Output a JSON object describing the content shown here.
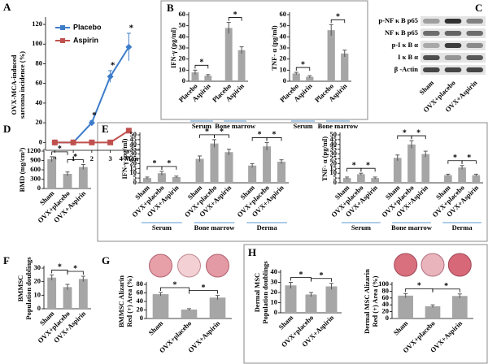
{
  "chart_data": [
    {
      "type": "line",
      "panel": "A",
      "ylabel": [
        "OVX-MCA-induced",
        "sarcoma incidence (%)"
      ],
      "x": [
        0,
        1,
        2,
        3,
        4
      ],
      "xlim": [
        -0.5,
        4.6
      ],
      "xticks": [
        0,
        1,
        2,
        3,
        {
          "value": 4,
          "label": "4 Mon"
        }
      ],
      "ylim": [
        -8,
        125
      ],
      "yticks": [
        0,
        20,
        40,
        60,
        80,
        100,
        120
      ],
      "series": [
        {
          "name": "Placebo",
          "color": "#3d7cc9",
          "marker": "diamond",
          "values": [
            0,
            0,
            20,
            67,
            97
          ],
          "errors": [
            0,
            0,
            2,
            6,
            14
          ]
        },
        {
          "name": "Aspirin",
          "color": "#c0504d",
          "marker": "square",
          "values": [
            0,
            0,
            0,
            0,
            12
          ],
          "errors": [
            0,
            0,
            0,
            0,
            1
          ]
        }
      ],
      "annotations": [
        {
          "x": 2,
          "label": "*"
        },
        {
          "x": 3,
          "label": "*"
        },
        {
          "x": 4,
          "label": "*"
        }
      ]
    },
    {
      "type": "bar",
      "panel": "B",
      "ylabel": [
        "IFN-γ (pg/ml)"
      ],
      "color": "#a6a6a6",
      "ylim": [
        0,
        60
      ],
      "yticks": [
        0,
        10,
        20,
        30,
        40,
        50,
        60
      ],
      "groups": [
        {
          "name": "Serum",
          "categories": [
            "Placebo",
            "Aspirin"
          ],
          "values": [
            8,
            5
          ],
          "errors": [
            2,
            1
          ]
        },
        {
          "name": "Bone marrow",
          "categories": [
            "Placebo",
            "Aspirin"
          ],
          "values": [
            48,
            28
          ],
          "errors": [
            5,
            3
          ]
        }
      ],
      "significance": [
        {
          "from": 0,
          "to": 1,
          "label": "*"
        },
        {
          "from": 2,
          "to": 3,
          "label": "*"
        }
      ]
    },
    {
      "type": "bar",
      "ylabel": [
        "TNF- α (pg/ml)"
      ],
      "color": "#a6a6a6",
      "ylim": [
        0,
        60
      ],
      "yticks": [
        0,
        10,
        20,
        30,
        40,
        50,
        60
      ],
      "groups": [
        {
          "name": "Serum",
          "categories": [
            "Placebo",
            "Aspirin"
          ],
          "values": [
            7,
            4
          ],
          "errors": [
            1,
            1
          ]
        },
        {
          "name": "Bone marrow",
          "categories": [
            "Placebo",
            "Aspirin"
          ],
          "values": [
            46,
            25
          ],
          "errors": [
            5,
            3
          ]
        }
      ],
      "significance": [
        {
          "from": 0,
          "to": 1,
          "label": "*"
        },
        {
          "from": 2,
          "to": 3,
          "label": "*"
        }
      ]
    },
    {
      "type": "blot",
      "panel": "C",
      "rows": [
        "p-NF κ B p65",
        "NF κ B p65",
        "p-I κ B α",
        "I κ B α",
        "β -Actin"
      ],
      "lanes": [
        "Sham",
        "OVX+placebo",
        "OVX+Aspirin"
      ]
    },
    {
      "type": "bar",
      "panel": "D",
      "ylabel": [
        "BMD  (mg/cm³)"
      ],
      "color": "#a6a6a6",
      "ylim": [
        0,
        1200
      ],
      "yticks": [
        0,
        300,
        600,
        900,
        1200
      ],
      "categories": [
        "Sham",
        "OVX+placebo",
        "OVX+Aspirin"
      ],
      "values": [
        940,
        470,
        690
      ],
      "errors": [
        80,
        60,
        80
      ],
      "significance": [
        {
          "from": 0,
          "to": 1,
          "label": "*"
        },
        {
          "from": 1,
          "to": 2,
          "label": "*"
        }
      ]
    },
    {
      "type": "bar",
      "panel": "E",
      "ylabel": [
        "IFN-γ (pg/ml)"
      ],
      "color": "#a6a6a6",
      "ylim": [
        0,
        50
      ],
      "yticks": [
        0,
        5,
        10,
        15,
        20,
        25,
        30,
        35,
        40,
        45,
        50
      ],
      "groups": [
        {
          "name": "Serum",
          "categories": [
            "Sham",
            "OVX+placebo",
            "OVX+Aspirin"
          ],
          "values": [
            5,
            10,
            6
          ],
          "errors": [
            1,
            2,
            1
          ]
        },
        {
          "name": "Bone marrow",
          "categories": [
            "Sham",
            "OVX+placebo",
            "OVX+Aspirin"
          ],
          "values": [
            25,
            41,
            32
          ],
          "errors": [
            3,
            4,
            3
          ]
        },
        {
          "name": "Derma",
          "categories": [
            "Sham",
            "OVX+placebo",
            "OVX+Aspirin"
          ],
          "values": [
            18,
            38,
            22
          ],
          "errors": [
            2,
            4,
            2
          ]
        }
      ],
      "significance": [
        {
          "from": 0,
          "to": 1,
          "label": "*"
        },
        {
          "from": 1,
          "to": 2,
          "label": "*"
        },
        {
          "from": 3,
          "to": 4,
          "label": "*"
        },
        {
          "from": 4,
          "to": 5,
          "label": "*"
        },
        {
          "from": 6,
          "to": 7,
          "label": "*"
        },
        {
          "from": 7,
          "to": 8,
          "label": "*"
        }
      ]
    },
    {
      "type": "bar",
      "ylabel": [
        "TNF- α (pg/ml)"
      ],
      "color": "#a6a6a6",
      "ylim": [
        0,
        50
      ],
      "yticks": [
        0,
        5,
        10,
        15,
        20,
        25,
        30,
        35,
        40,
        45,
        50
      ],
      "groups": [
        {
          "name": "Serum",
          "categories": [
            "Sham",
            "OVX+placebo",
            "OVX+Aspirin"
          ],
          "values": [
            5,
            9,
            5
          ],
          "errors": [
            1,
            1,
            1
          ]
        },
        {
          "name": "Bone marrow",
          "categories": [
            "Sham",
            "OVX+placebo",
            "OVX+Aspirin"
          ],
          "values": [
            26,
            40,
            30
          ],
          "errors": [
            3,
            4,
            3
          ]
        },
        {
          "name": "Derma",
          "categories": [
            "Sham",
            "OVX+placebo",
            "OVX+Aspirin"
          ],
          "values": [
            8,
            16,
            8
          ],
          "errors": [
            1,
            2,
            1
          ]
        }
      ],
      "significance": [
        {
          "from": 0,
          "to": 1,
          "label": "*"
        },
        {
          "from": 1,
          "to": 2,
          "label": "*"
        },
        {
          "from": 3,
          "to": 4,
          "label": "*"
        },
        {
          "from": 4,
          "to": 5,
          "label": "*"
        },
        {
          "from": 6,
          "to": 7,
          "label": "*"
        },
        {
          "from": 7,
          "to": 8,
          "label": "*"
        }
      ]
    },
    {
      "type": "bar",
      "panel": "F",
      "ylabel": [
        "BMMSC",
        "Population doublings"
      ],
      "color": "#a6a6a6",
      "ylim": [
        0,
        30
      ],
      "yticks": [
        0,
        10,
        20,
        30
      ],
      "categories": [
        "Sham",
        "OVX+placebo",
        "OVX+Aspirin"
      ],
      "values": [
        23,
        16,
        22
      ],
      "errors": [
        2,
        2,
        2
      ],
      "significance": [
        {
          "from": 0,
          "to": 1,
          "label": "*"
        },
        {
          "from": 1,
          "to": 2,
          "label": "*"
        }
      ]
    },
    {
      "type": "bar",
      "panel": "G",
      "ylabel": [
        "BMMSC Alizarin",
        "Red (+) Area (%)"
      ],
      "color": "#a6a6a6",
      "ylim": [
        0,
        80
      ],
      "yticks": [
        0,
        20,
        40,
        60,
        80
      ],
      "categories": [
        "Sham",
        "OVX+placebo",
        "OVX+Aspirin"
      ],
      "values": [
        57,
        21,
        49
      ],
      "errors": [
        4,
        2,
        5
      ],
      "significance": [
        {
          "from": 0,
          "to": 1,
          "label": "*"
        },
        {
          "from": 1,
          "to": 2,
          "label": "*"
        }
      ]
    },
    {
      "type": "bar",
      "panel": "H",
      "ylabel": [
        "Dermal MSC",
        "Population doublings"
      ],
      "color": "#a6a6a6",
      "ylim": [
        0,
        40
      ],
      "yticks": [
        0,
        10,
        20,
        30,
        40
      ],
      "categories": [
        "Sham",
        "OVX+placebo",
        "OVX+Aspirin"
      ],
      "values": [
        27,
        18,
        26
      ],
      "errors": [
        3,
        2,
        3
      ],
      "significance": [
        {
          "from": 0,
          "to": 1,
          "label": "*"
        },
        {
          "from": 1,
          "to": 2,
          "label": "*"
        }
      ]
    },
    {
      "type": "bar",
      "ylabel": [
        "Dermal MSC Alizarin",
        "Red (+) Area (%)"
      ],
      "color": "#a6a6a6",
      "ylim": [
        0,
        100
      ],
      "yticks": [
        0,
        20,
        40,
        60,
        80,
        100
      ],
      "categories": [
        "Sham",
        "OVX+placebo",
        "OVX+Aspirin"
      ],
      "values": [
        67,
        36,
        66
      ],
      "errors": [
        6,
        4,
        6
      ],
      "significance": [
        {
          "from": 0,
          "to": 1,
          "label": "*"
        },
        {
          "from": 1,
          "to": 2,
          "label": "*"
        }
      ]
    }
  ]
}
